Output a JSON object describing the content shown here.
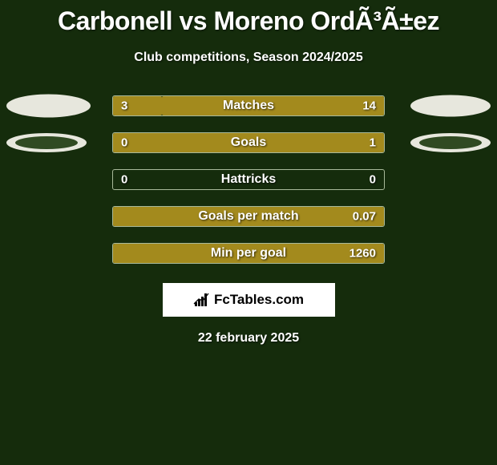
{
  "title": "Carbonell vs Moreno OrdÃ³Ã±ez",
  "subtitle": "Club competitions, Season 2024/2025",
  "date": "22 february 2025",
  "brand": "FcTables.com",
  "colors": {
    "background": "#152c0c",
    "track_border": "#a8b99a",
    "left_fill": "#a38a1d",
    "right_fill": "#a38a1d",
    "oval_left": "#e7e7dd",
    "oval_right": "#e7e7dd",
    "overlay_oval": "#304a22",
    "text": "#ffffff"
  },
  "oval_row1": {
    "left_w": 105,
    "left_h": 29,
    "right_w": 100,
    "right_h": 27
  },
  "oval_row2": {
    "left_w": 100,
    "left_h": 24,
    "right_w": 100,
    "right_h": 24,
    "overlay": true,
    "overlay_dx": 11,
    "overlay_w": 78,
    "overlay_h": 16
  },
  "rows": [
    {
      "label": "Matches",
      "left": "3",
      "right": "14",
      "left_pct": 18,
      "right_pct": 82,
      "show_ovals": true,
      "oval_key": "oval_row1"
    },
    {
      "label": "Goals",
      "left": "0",
      "right": "1",
      "left_pct": 0,
      "right_pct": 100,
      "show_ovals": true,
      "oval_key": "oval_row2"
    },
    {
      "label": "Hattricks",
      "left": "0",
      "right": "0",
      "left_pct": 0,
      "right_pct": 0,
      "show_ovals": false
    },
    {
      "label": "Goals per match",
      "left": "",
      "right": "0.07",
      "left_pct": 0,
      "right_pct": 100,
      "show_ovals": false
    },
    {
      "label": "Min per goal",
      "left": "",
      "right": "1260",
      "left_pct": 0,
      "right_pct": 100,
      "show_ovals": false
    }
  ]
}
